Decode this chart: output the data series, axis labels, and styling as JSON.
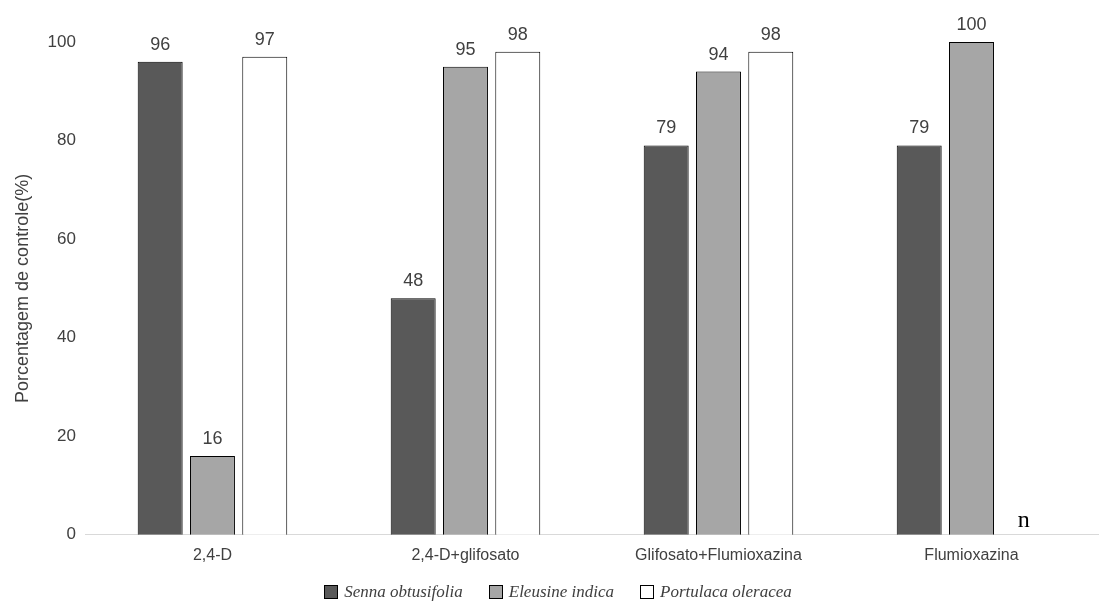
{
  "chart_data": {
    "type": "bar",
    "ylabel": "Porcentagem de controle(%)",
    "categories": [
      "2,4-D",
      "2,4-D+glifosato",
      "Glifosato+Flumioxazina",
      "Flumioxazina"
    ],
    "series": [
      {
        "name": "Senna obtusifolia",
        "color": "#595959",
        "values": [
          96,
          48,
          79,
          79
        ],
        "value_labels": [
          "96",
          "48",
          "79",
          "79"
        ]
      },
      {
        "name": "Eleusine indica",
        "color": "#a6a6a6",
        "values": [
          16,
          95,
          94,
          100
        ],
        "value_labels": [
          "16",
          "95",
          "94",
          "100"
        ]
      },
      {
        "name": "Portulaca oleracea",
        "color": "#ffffff",
        "values": [
          97,
          98,
          98,
          null
        ],
        "value_labels": [
          "97",
          "98",
          "98",
          "n"
        ]
      }
    ],
    "ylim": [
      0,
      100
    ],
    "yticks": [
      0,
      20,
      40,
      60,
      80,
      100
    ],
    "legend": "bottom"
  }
}
